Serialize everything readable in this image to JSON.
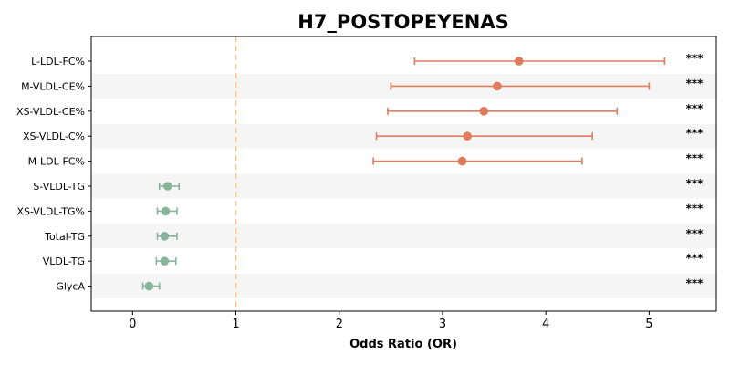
{
  "chart_data": {
    "type": "forest",
    "title": "H7_POSTOPEYENAS",
    "xlabel": "Odds Ratio (OR)",
    "xlim": [
      -0.4,
      5.65
    ],
    "xticks": [
      0,
      1,
      2,
      3,
      4,
      5
    ],
    "reference_line": 1,
    "reference_color": "#f5c27a",
    "colors": {
      "increased": "#e07b5d",
      "decreased": "#86b59c",
      "band": "#f5f5f5"
    },
    "rows": [
      {
        "label": "L-LDL-FC%",
        "or": 3.74,
        "ci_low": 2.73,
        "ci_high": 5.15,
        "sig": "***",
        "group": "increased"
      },
      {
        "label": "M-VLDL-CE%",
        "or": 3.53,
        "ci_low": 2.5,
        "ci_high": 5.0,
        "sig": "***",
        "group": "increased"
      },
      {
        "label": "XS-VLDL-CE%",
        "or": 3.4,
        "ci_low": 2.47,
        "ci_high": 4.69,
        "sig": "***",
        "group": "increased"
      },
      {
        "label": "XS-VLDL-C%",
        "or": 3.24,
        "ci_low": 2.36,
        "ci_high": 4.45,
        "sig": "***",
        "group": "increased"
      },
      {
        "label": "M-LDL-FC%",
        "or": 3.19,
        "ci_low": 2.33,
        "ci_high": 4.35,
        "sig": "***",
        "group": "increased"
      },
      {
        "label": "S-VLDL-TG",
        "or": 0.34,
        "ci_low": 0.26,
        "ci_high": 0.45,
        "sig": "***",
        "group": "decreased"
      },
      {
        "label": "XS-VLDL-TG%",
        "or": 0.32,
        "ci_low": 0.24,
        "ci_high": 0.43,
        "sig": "***",
        "group": "decreased"
      },
      {
        "label": "Total-TG",
        "or": 0.31,
        "ci_low": 0.24,
        "ci_high": 0.43,
        "sig": "***",
        "group": "decreased"
      },
      {
        "label": "VLDL-TG",
        "or": 0.31,
        "ci_low": 0.23,
        "ci_high": 0.42,
        "sig": "***",
        "group": "decreased"
      },
      {
        "label": "GlycA",
        "or": 0.16,
        "ci_low": 0.1,
        "ci_high": 0.26,
        "sig": "***",
        "group": "decreased"
      }
    ]
  }
}
